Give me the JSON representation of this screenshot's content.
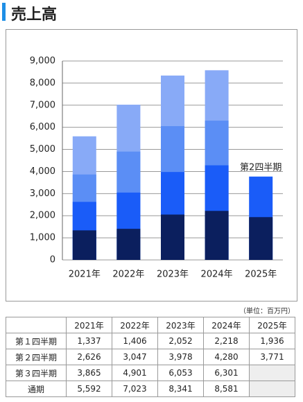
{
  "chart_data": {
    "type": "bar",
    "title": "売上高",
    "unit": "（単位：百万円）",
    "annotation": "第2四半期",
    "categories": [
      "2021年",
      "2022年",
      "2023年",
      "2024年",
      "2025年"
    ],
    "series": [
      {
        "name": "第１四半期",
        "color": "#0b1f5e",
        "values": [
          1337,
          1406,
          2052,
          2218,
          1936
        ],
        "value_labels": [
          "1,337",
          "1,406",
          "2,052",
          "2,218",
          "1,936"
        ]
      },
      {
        "name": "第２四半期",
        "color": "#1a5cf8",
        "values": [
          2626,
          3047,
          3978,
          4280,
          3771
        ],
        "value_labels": [
          "2,626",
          "3,047",
          "3,978",
          "4,280",
          "3,771"
        ]
      },
      {
        "name": "第３四半期",
        "color": "#5b8ef5",
        "values": [
          3865,
          4901,
          6053,
          6301,
          null
        ],
        "value_labels": [
          "3,865",
          "4,901",
          "6,053",
          "6,301",
          null
        ]
      },
      {
        "name": "通期",
        "color": "#88aaf7",
        "values": [
          5592,
          7023,
          8341,
          8581,
          null
        ],
        "value_labels": [
          "5,592",
          "7,023",
          "8,341",
          "8,581",
          null
        ]
      }
    ],
    "ylim": [
      0,
      9000
    ],
    "yticks": [
      0,
      {
        "value": 1000,
        "label": "1,000"
      },
      {
        "value": 2000,
        "label": "2,000"
      },
      {
        "value": 3000,
        "label": "3,000"
      },
      {
        "value": 4000,
        "label": "4,000"
      },
      {
        "value": 5000,
        "label": "5,000"
      },
      {
        "value": 6000,
        "label": "6,000"
      },
      {
        "value": 7000,
        "label": "7,000"
      },
      {
        "value": 8000,
        "label": "8,000"
      },
      {
        "value": 9000,
        "label": "9,000"
      }
    ],
    "grid": true
  }
}
